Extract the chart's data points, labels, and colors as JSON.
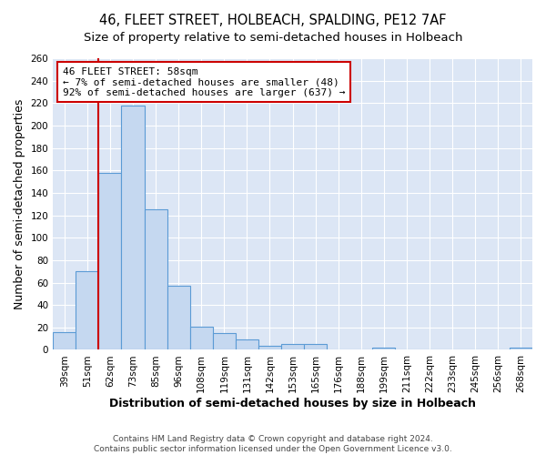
{
  "title": "46, FLEET STREET, HOLBEACH, SPALDING, PE12 7AF",
  "subtitle": "Size of property relative to semi-detached houses in Holbeach",
  "xlabel": "Distribution of semi-detached houses by size in Holbeach",
  "ylabel": "Number of semi-detached properties",
  "categories": [
    "39sqm",
    "51sqm",
    "62sqm",
    "73sqm",
    "85sqm",
    "96sqm",
    "108sqm",
    "119sqm",
    "131sqm",
    "142sqm",
    "153sqm",
    "165sqm",
    "176sqm",
    "188sqm",
    "199sqm",
    "211sqm",
    "222sqm",
    "233sqm",
    "245sqm",
    "256sqm",
    "268sqm"
  ],
  "values": [
    16,
    70,
    158,
    218,
    125,
    57,
    21,
    15,
    9,
    4,
    5,
    5,
    0,
    0,
    2,
    0,
    0,
    0,
    0,
    0,
    2
  ],
  "bar_color": "#c5d8f0",
  "bar_edge_color": "#5b9bd5",
  "bar_width": 1.0,
  "ylim": [
    0,
    260
  ],
  "yticks": [
    0,
    20,
    40,
    60,
    80,
    100,
    120,
    140,
    160,
    180,
    200,
    220,
    240,
    260
  ],
  "marker_line_color": "#cc0000",
  "annotation_box_color": "#ffffff",
  "annotation_box_edge_color": "#cc0000",
  "marker_label": "46 FLEET STREET: 58sqm",
  "smaller_pct": 7,
  "smaller_count": 48,
  "larger_pct": 92,
  "larger_count": 637,
  "bg_color": "#ffffff",
  "plot_bg_color": "#dce6f5",
  "grid_color": "#ffffff",
  "title_fontsize": 10.5,
  "subtitle_fontsize": 9.5,
  "axis_label_fontsize": 9,
  "tick_fontsize": 7.5,
  "annotation_fontsize": 8,
  "footer_fontsize": 6.5,
  "footer_line1": "Contains HM Land Registry data © Crown copyright and database right 2024.",
  "footer_line2": "Contains public sector information licensed under the Open Government Licence v3.0."
}
